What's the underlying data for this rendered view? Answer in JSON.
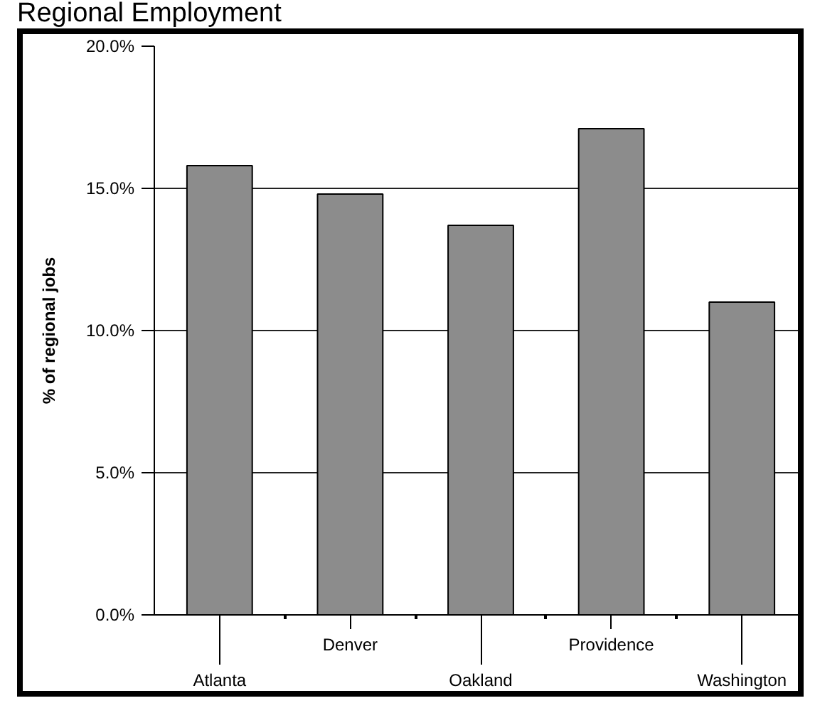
{
  "chart_data": {
    "type": "bar",
    "title": "Regional Employment",
    "ylabel": "% of regional jobs",
    "categories": [
      "Atlanta",
      "Denver",
      "Oakland",
      "Providence",
      "Washington"
    ],
    "values": [
      15.8,
      14.8,
      13.7,
      17.1,
      11.0
    ],
    "color": "#8c8c8c",
    "ylim": [
      0,
      20
    ],
    "yticks": [
      {
        "value": 0,
        "label": "0.0%"
      },
      {
        "value": 5,
        "label": "5.0%"
      },
      {
        "value": 10,
        "label": "10.0%"
      },
      {
        "value": 15,
        "label": "15.0%"
      },
      {
        "value": 20,
        "label": "20.0%"
      }
    ],
    "grid": "y"
  }
}
